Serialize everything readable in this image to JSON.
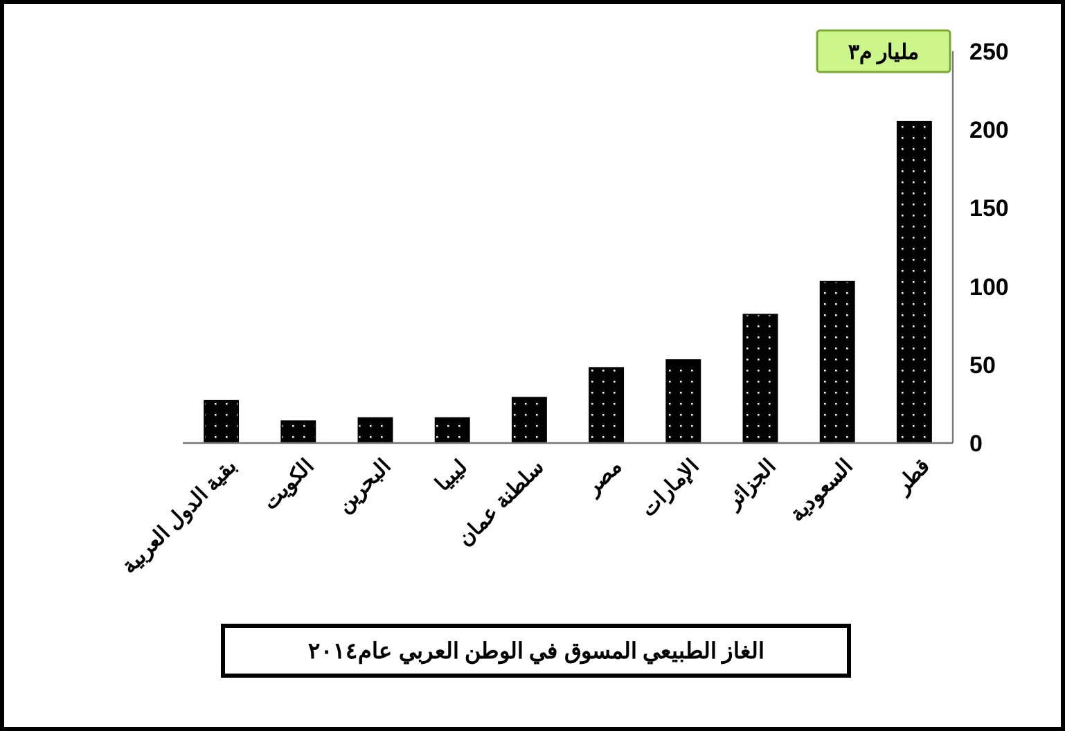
{
  "chart_data": {
    "type": "bar",
    "title": "الغاز الطبيعي المسوق في الوطن العربي عام٢٠١٤",
    "ylabel": "مليار م٣",
    "categories": [
      "بقية الدول العربية",
      "الكويت",
      "البحرين",
      "ليبيا",
      "سلطنة عمان",
      "مصر",
      "الإمارات",
      "الجزائر",
      "السعودية",
      "قطر"
    ],
    "values": [
      27,
      14,
      16,
      16,
      29,
      48,
      53,
      82,
      103,
      205
    ],
    "color": "#000000",
    "ylim": [
      0,
      250
    ],
    "yticks": [
      0,
      50,
      100,
      150,
      200,
      250
    ],
    "grid": false
  }
}
